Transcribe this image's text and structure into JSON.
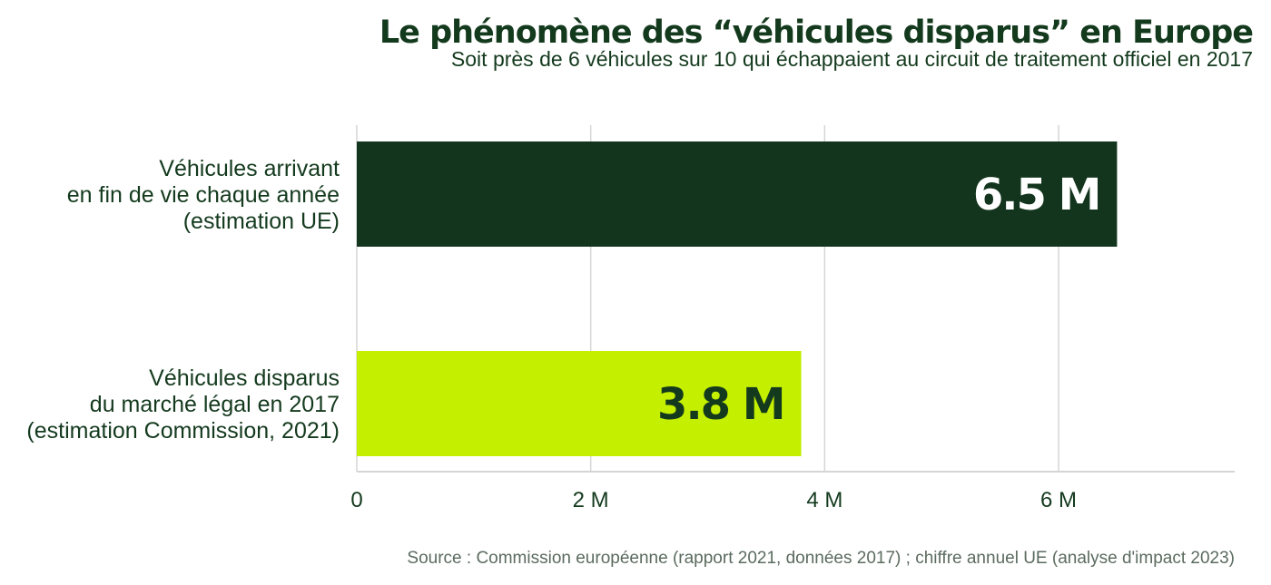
{
  "chart_data": {
    "type": "bar",
    "orientation": "horizontal",
    "title": "Le phénomène des “véhicules disparus” en Europe",
    "subtitle": "Soit près de 6 véhicules sur 10 qui échappaient au circuit de traitement officiel en 2017",
    "categories": [
      [
        "Véhicules arrivant",
        "en fin de vie chaque année",
        "(estimation UE)"
      ],
      [
        "Véhicules disparus",
        "du marché légal en 2017",
        "(estimation Commission, 2021)"
      ]
    ],
    "values": [
      6.5,
      3.8
    ],
    "data_labels": [
      "6.5 M",
      "3.8 M"
    ],
    "xlim": [
      0,
      7.5
    ],
    "ticks": [
      0,
      2,
      4,
      6
    ],
    "tick_labels": [
      "0",
      "2 M",
      "4 M",
      "6 M"
    ],
    "grid": true,
    "source": "Source : Commission européenne (rapport 2021, données 2017) ; chiffre annuel UE (analyse d'impact 2023)"
  },
  "colors": {
    "title": "#143a1e",
    "text": "#143a1e",
    "source": "#5b6b5f",
    "grid": "#d5d5d5",
    "bars": [
      "#13351d",
      "#c4f000"
    ],
    "data_label_text": [
      "#ffffff",
      "#143a1e"
    ]
  }
}
